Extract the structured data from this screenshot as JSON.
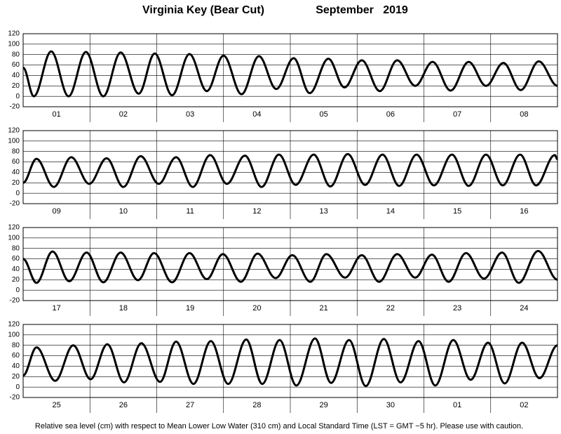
{
  "title": "Virginia Key (Bear Cut)",
  "month": "September   2019",
  "note": "Relative sea level (cm) with respect to Mean Lower Low Water (310 cm) and Local Standard Time (LST = GMT −5 hr). Please use with caution.",
  "chart_data": [
    {
      "type": "line",
      "categories": [
        "01",
        "02",
        "03",
        "04",
        "05",
        "06",
        "07",
        "08"
      ],
      "x": [
        0,
        0.16,
        0.42,
        0.68,
        0.94,
        1.2,
        1.46,
        1.73,
        1.97,
        2.23,
        2.49,
        2.75,
        3.0,
        3.27,
        3.53,
        3.79,
        4.05,
        4.29,
        4.57,
        4.81,
        5.07,
        5.34,
        5.6,
        5.87,
        6.13,
        6.4,
        6.67,
        6.93,
        7.19,
        7.45,
        7.72,
        8
      ],
      "series": [
        {
          "color": "#000000",
          "values": [
            55,
            0,
            86,
            0,
            85,
            0,
            84,
            5,
            82,
            2,
            81,
            10,
            78,
            4,
            77,
            14,
            73,
            6,
            72,
            17,
            69,
            10,
            69,
            20,
            66,
            11,
            66,
            20,
            64,
            12,
            67,
            20
          ]
        }
      ],
      "xlim": [
        0,
        8
      ],
      "ylim": [
        -20,
        120
      ],
      "yticks": [
        -20,
        0,
        20,
        40,
        60,
        80,
        100,
        120
      ],
      "grid": true
    },
    {
      "type": "line",
      "categories": [
        "09",
        "10",
        "11",
        "12",
        "13",
        "14",
        "15",
        "16"
      ],
      "x": [
        0,
        0.2,
        0.46,
        0.72,
        0.99,
        1.25,
        1.5,
        1.76,
        2.03,
        2.29,
        2.54,
        2.8,
        3.05,
        3.32,
        3.57,
        3.83,
        4.08,
        4.35,
        4.6,
        4.86,
        5.12,
        5.38,
        5.63,
        5.89,
        6.15,
        6.42,
        6.67,
        6.93,
        7.18,
        7.44,
        7.68,
        7.96,
        8
      ],
      "series": [
        {
          "color": "#000000",
          "values": [
            20,
            66,
            12,
            69,
            18,
            67,
            12,
            71,
            18,
            69,
            12,
            73,
            18,
            72,
            12,
            74,
            16,
            74,
            13,
            75,
            16,
            74,
            14,
            74,
            15,
            74,
            14,
            74,
            15,
            74,
            15,
            73,
            65
          ]
        }
      ],
      "xlim": [
        0,
        8
      ],
      "ylim": [
        -20,
        120
      ],
      "yticks": [
        -20,
        0,
        20,
        40,
        60,
        80,
        100,
        120
      ],
      "grid": true
    },
    {
      "type": "line",
      "categories": [
        "17",
        "18",
        "19",
        "20",
        "21",
        "22",
        "23",
        "24"
      ],
      "x": [
        0,
        0.2,
        0.44,
        0.69,
        0.95,
        1.2,
        1.46,
        1.72,
        1.96,
        2.23,
        2.49,
        2.75,
        2.99,
        3.26,
        3.51,
        3.78,
        4.03,
        4.3,
        4.54,
        4.82,
        5.07,
        5.33,
        5.6,
        5.87,
        6.12,
        6.37,
        6.63,
        6.9,
        7.17,
        7.42,
        7.71,
        8
      ],
      "series": [
        {
          "color": "#000000",
          "values": [
            60,
            14,
            74,
            17,
            72,
            15,
            72,
            19,
            71,
            15,
            71,
            21,
            69,
            16,
            70,
            23,
            67,
            16,
            69,
            24,
            67,
            16,
            69,
            24,
            68,
            16,
            71,
            22,
            72,
            14,
            75,
            20
          ]
        }
      ],
      "xlim": [
        0,
        8
      ],
      "ylim": [
        -20,
        120
      ],
      "yticks": [
        -20,
        0,
        20,
        40,
        60,
        80,
        100,
        120
      ],
      "grid": true
    },
    {
      "type": "line",
      "categories": [
        "25",
        "26",
        "27",
        "28",
        "29",
        "30",
        "01",
        "02"
      ],
      "x": [
        0,
        0.2,
        0.48,
        0.75,
        1.01,
        1.26,
        1.51,
        1.77,
        2.05,
        2.29,
        2.55,
        2.81,
        3.07,
        3.34,
        3.58,
        3.84,
        4.09,
        4.37,
        4.61,
        4.88,
        5.13,
        5.4,
        5.65,
        5.92,
        6.17,
        6.44,
        6.7,
        6.96,
        7.21,
        7.47,
        7.73,
        8
      ],
      "series": [
        {
          "color": "#000000",
          "values": [
            22,
            76,
            12,
            80,
            15,
            82,
            9,
            84,
            10,
            87,
            6,
            88,
            6,
            91,
            6,
            90,
            3,
            93,
            8,
            90,
            2,
            92,
            9,
            88,
            3,
            90,
            14,
            85,
            7,
            85,
            17,
            80
          ]
        }
      ],
      "xlim": [
        0,
        8
      ],
      "ylim": [
        -20,
        120
      ],
      "yticks": [
        -20,
        0,
        20,
        40,
        60,
        80,
        100,
        120
      ],
      "grid": true
    }
  ]
}
